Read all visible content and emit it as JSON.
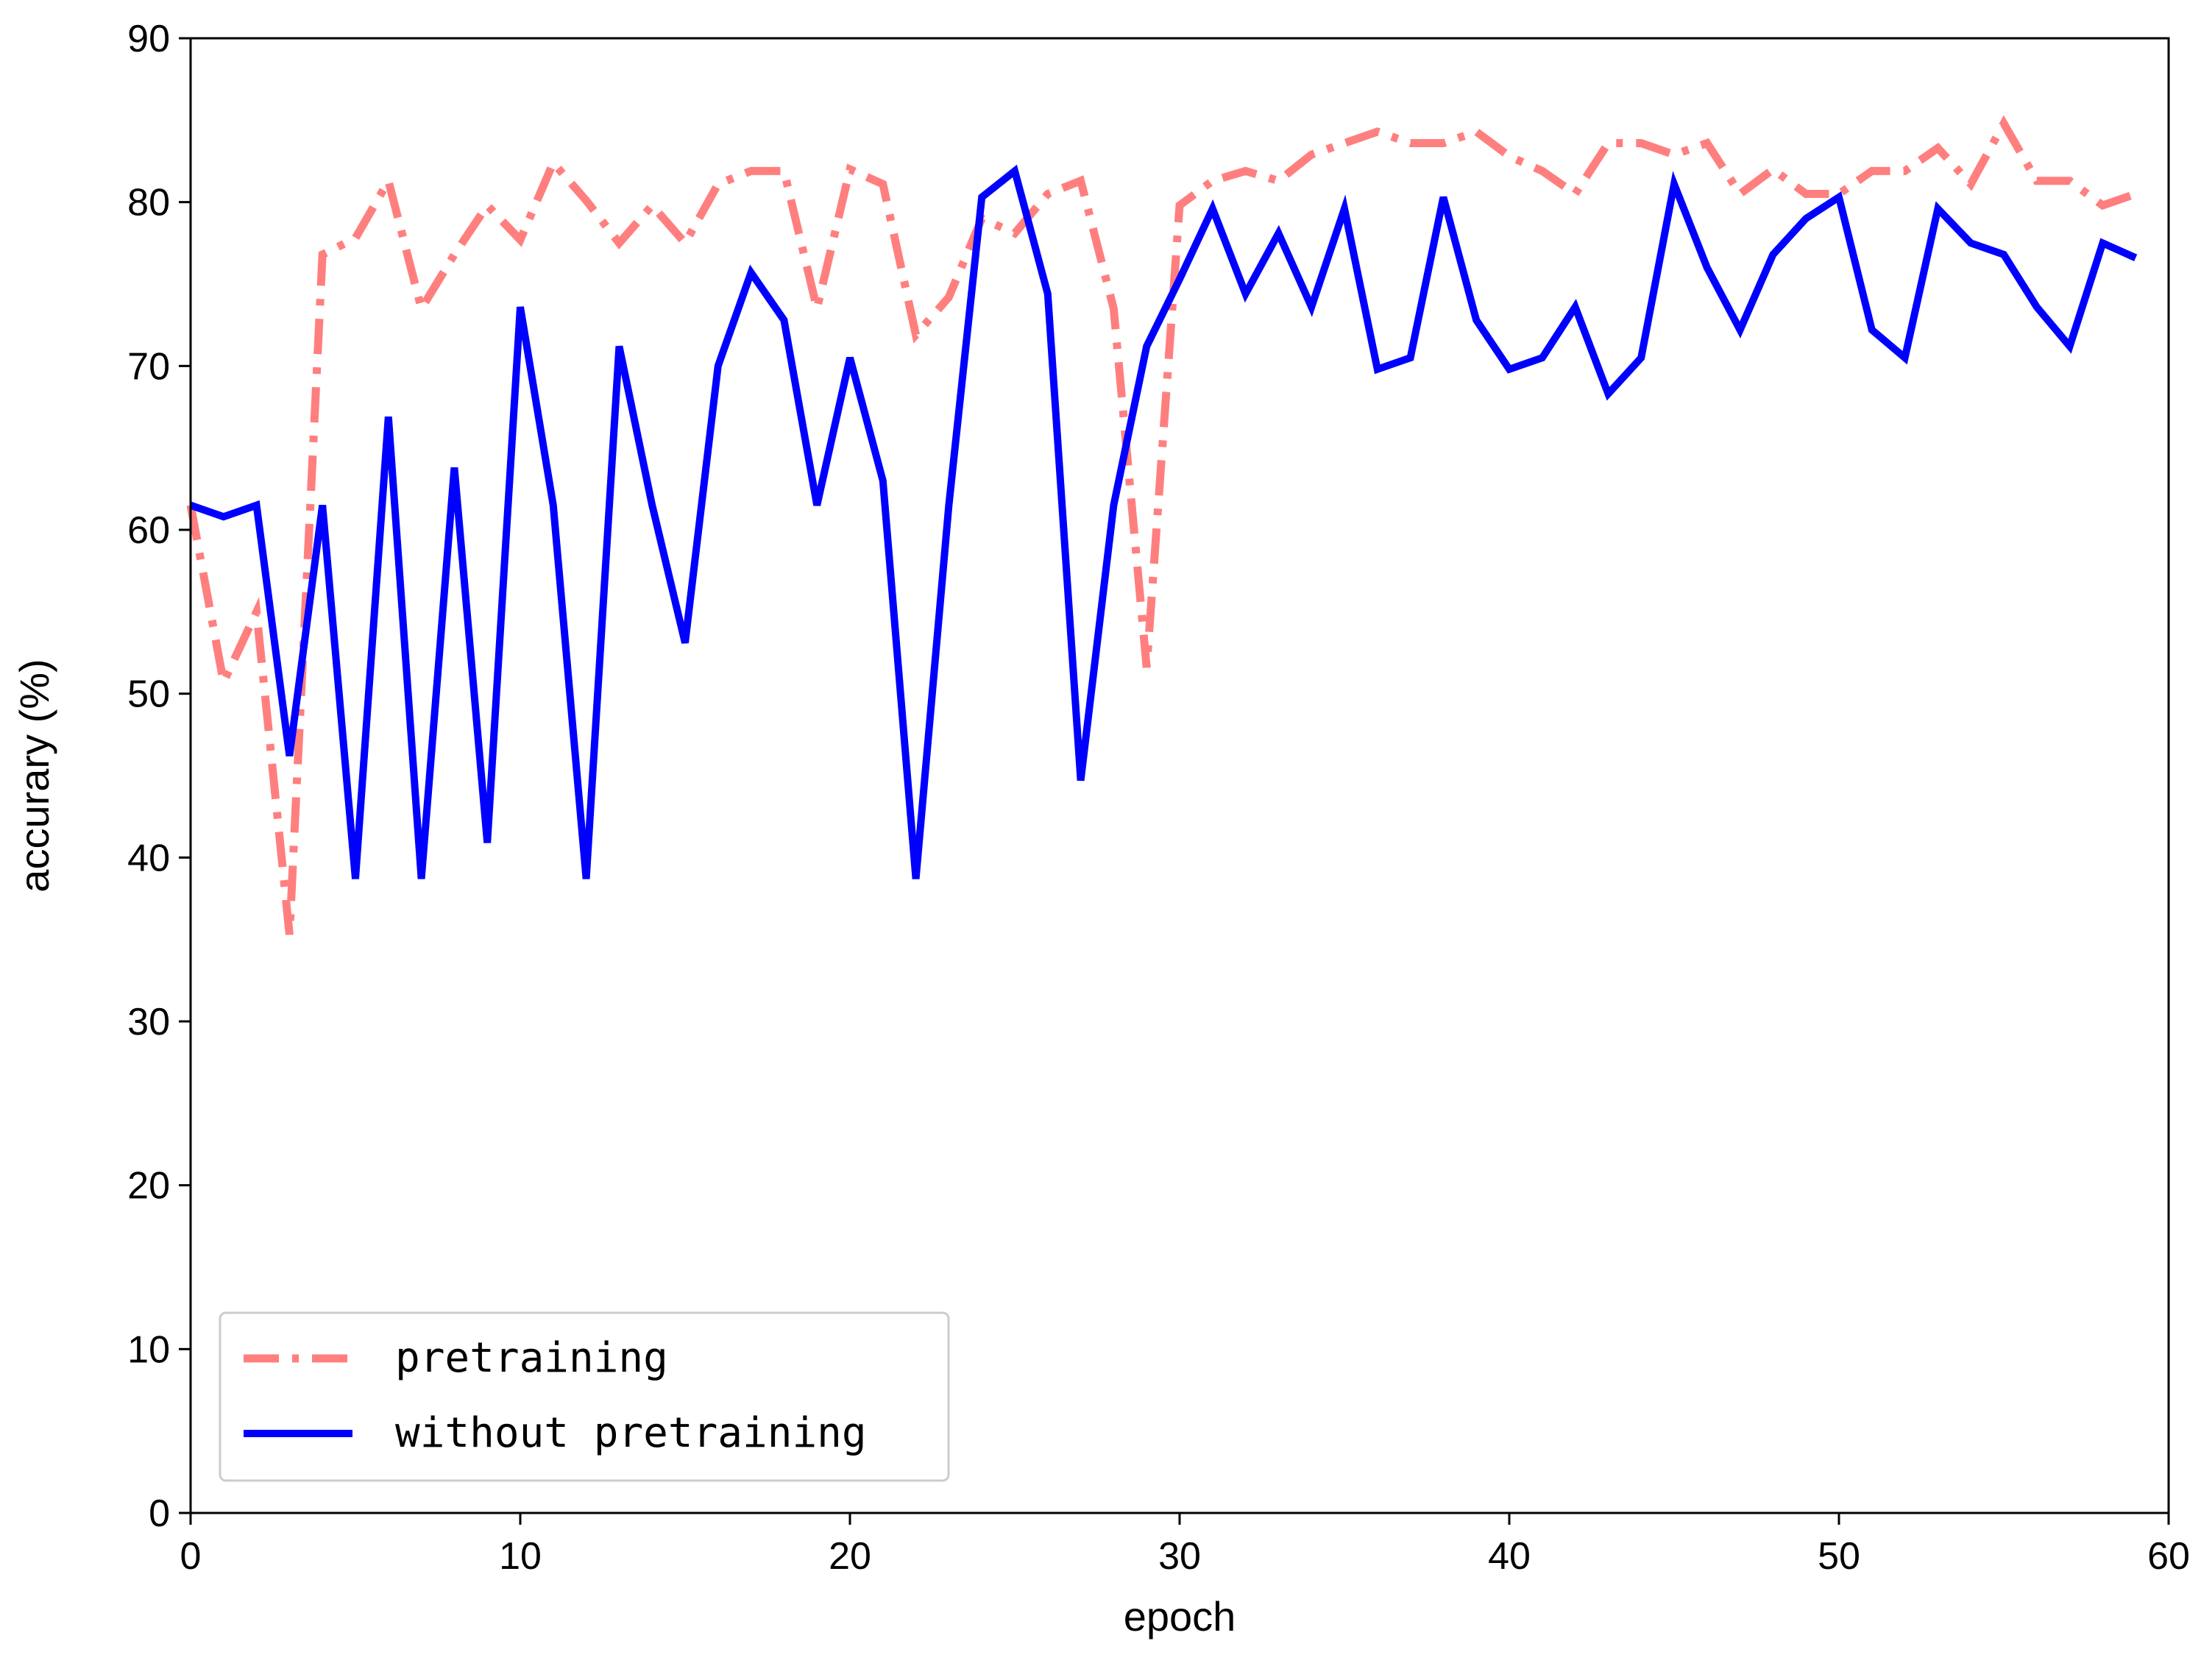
{
  "chart_data": {
    "type": "line",
    "title": "",
    "xlabel": "epoch",
    "ylabel": "accurary (%)",
    "xlim": [
      0,
      60
    ],
    "ylim": [
      0,
      90
    ],
    "xticks": [
      0,
      10,
      20,
      30,
      40,
      50,
      60
    ],
    "yticks": [
      0,
      10,
      20,
      30,
      40,
      50,
      60,
      70,
      80,
      90
    ],
    "grid": false,
    "legend_position": "lower-left",
    "x": [
      0,
      1,
      2,
      3,
      4,
      5,
      6,
      7,
      8,
      9,
      10,
      11,
      12,
      13,
      14,
      15,
      16,
      17,
      18,
      19,
      20,
      21,
      22,
      23,
      24,
      25,
      26,
      27,
      28,
      29,
      30,
      31,
      32,
      33,
      34,
      35,
      36,
      37,
      38,
      39,
      40,
      41,
      42,
      43,
      44,
      45,
      46,
      47,
      48,
      49,
      50,
      51,
      52,
      53,
      54,
      55,
      56,
      57,
      58,
      59
    ],
    "series": [
      {
        "name": "pretraining",
        "color": "#ff7f7f",
        "style": "dashdot",
        "values": [
          61.5,
          50.7,
          55,
          35.3,
          76.8,
          77.8,
          81.3,
          73.5,
          76.8,
          79.8,
          77.7,
          82.4,
          80.1,
          77.5,
          79.8,
          77.5,
          81.1,
          81.9,
          81.9,
          73.5,
          82,
          81.1,
          71.9,
          74.2,
          79,
          78.1,
          80.5,
          81.3,
          73.5,
          51.6,
          79.8,
          81.3,
          81.9,
          81.3,
          82.9,
          83.6,
          84.3,
          83.6,
          83.6,
          84.3,
          82.8,
          81.9,
          80.5,
          83.6,
          83.6,
          82.9,
          83.6,
          80.5,
          82,
          80.5,
          80.5,
          81.9,
          81.9,
          83.3,
          81.1,
          84.8,
          81.3,
          81.3,
          79.8,
          80.5
        ]
      },
      {
        "name": "without pretraining",
        "color": "#0000ff",
        "style": "solid",
        "values": [
          61.5,
          60.8,
          61.5,
          46.2,
          61.5,
          38.7,
          66.9,
          38.7,
          63.8,
          40.9,
          73.6,
          61.5,
          38.7,
          71.2,
          61.5,
          53.1,
          70,
          75.7,
          72.8,
          61.5,
          70.5,
          63,
          38.7,
          61.5,
          80.3,
          81.9,
          74.4,
          44.7,
          61.5,
          71.2,
          75.3,
          79.6,
          74.4,
          78.1,
          73.6,
          79.6,
          69.8,
          70.5,
          80.3,
          72.8,
          69.8,
          70.5,
          73.6,
          68.3,
          70.5,
          81.1,
          76,
          72.2,
          76.8,
          79,
          80.3,
          72.2,
          70.5,
          79.6,
          77.5,
          76.8,
          73.6,
          71.2,
          77.5,
          76.6
        ]
      }
    ]
  }
}
